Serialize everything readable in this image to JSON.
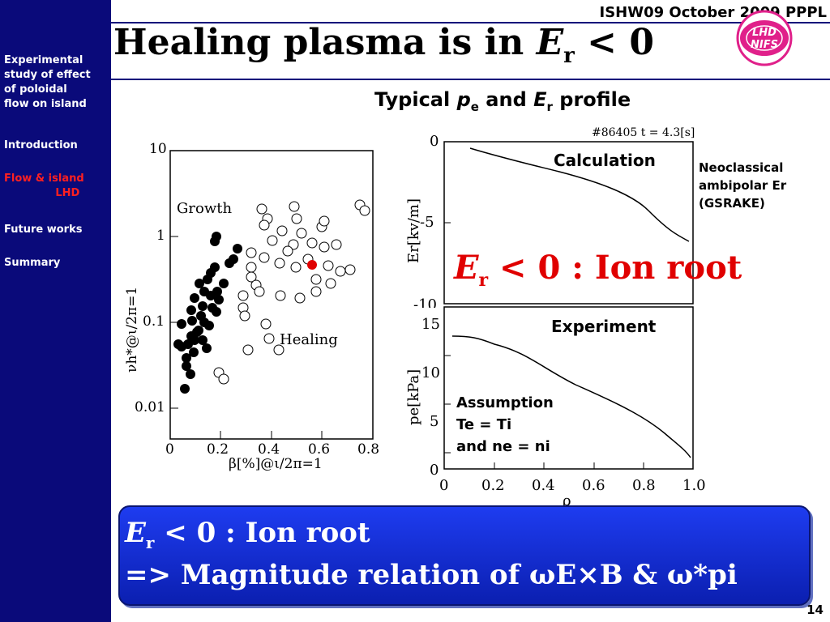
{
  "sidebar": {
    "items": [
      {
        "label": "Experimental\nstudy of effect\nof poloidal\nflow on island",
        "active": false
      },
      {
        "label": "Introduction",
        "active": false
      },
      {
        "label": "Flow & island\n              LHD",
        "active": true
      },
      {
        "label": "Future works",
        "active": false
      },
      {
        "label": "Summary",
        "active": false
      }
    ]
  },
  "header": {
    "conference": "ISHW09 October 2009 PPPL",
    "title_main": "Healing plasma is in ",
    "title_E": "E",
    "title_sub": "r",
    "title_tail": " < 0",
    "logo_text": "LHD NIFS"
  },
  "subtitle": {
    "pre": "Typical ",
    "p": "p",
    "p_sub": "e",
    "and": " and ",
    "E": "E",
    "E_sub": "r",
    "post": " profile"
  },
  "scatter": {
    "y_axis_label": "νh*@ι/2π=1",
    "x_axis_label": "β[%]@ι/2π=1",
    "y_ticks": [
      "10",
      "1",
      "0.1",
      "0.01"
    ],
    "x_ticks": [
      "0",
      "0.2",
      "0.4",
      "0.6",
      "0.8"
    ],
    "growth_label": "Growth",
    "healing_label": "Healing",
    "highlight_color": "#e00000"
  },
  "er_plot": {
    "shot_label": "#86405 t = 4.3[s]",
    "y_ticks": [
      "0",
      "-5",
      "-10"
    ],
    "y_label": "Er[kv/m]",
    "calc_label": "Calculation"
  },
  "neoclassical": {
    "line1": "Neoclassical",
    "line2": "ambipolar Er",
    "line3": "(GSRAKE)"
  },
  "ion_root_big": {
    "E": "E",
    "sub": "r",
    "text": " < 0 : Ion root"
  },
  "pe_plot": {
    "y_ticks": [
      "15",
      "10",
      "5",
      "0"
    ],
    "x_ticks": [
      "0",
      "0.2",
      "0.4",
      "0.6",
      "0.8",
      "1.0"
    ],
    "y_label": "pe[kPa]",
    "x_label": "ρ",
    "exp_label": "Experiment",
    "assumption": "Assumption",
    "assumption_line1": "Te = Ti",
    "assumption_line2": "and ne = ni"
  },
  "summary_box": {
    "line1_E": "E",
    "line1_sub": "r",
    "line1_text": " < 0 : Ion root",
    "line2_text": "=> Magnitude relation of ωE×B & ω*pi"
  },
  "page_number": "14",
  "colors": {
    "sidebar_bg": "#0a0a7a",
    "sidebar_text": "#ffffff",
    "sidebar_active": "#ff2020",
    "accent_red": "#e00000",
    "box_blue": "#1e3cf0",
    "logo_magenta": "#e0208a"
  }
}
